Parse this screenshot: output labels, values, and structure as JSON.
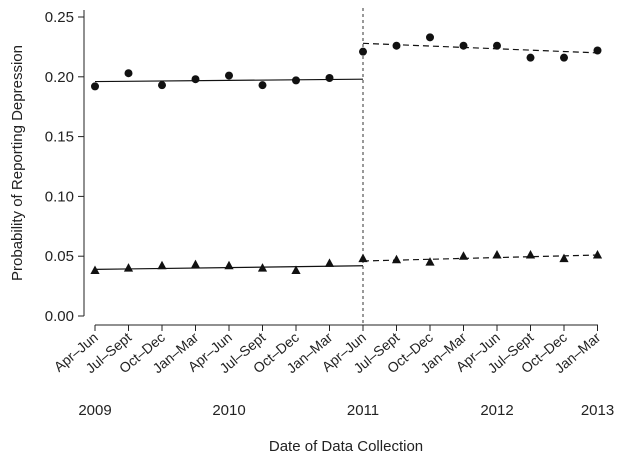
{
  "chart_data": {
    "type": "scatter",
    "title": "",
    "xlabel": "Date of Data Collection",
    "ylabel": "Probability of Reporting Depression",
    "ylim": [
      0,
      0.25
    ],
    "yticks": [
      "0.00",
      "0.05",
      "0.10",
      "0.15",
      "0.20",
      "0.25"
    ],
    "categories": [
      "Apr–Jun",
      "Jul–Sept",
      "Oct–Dec",
      "Jan–Mar",
      "Apr–Jun",
      "Jul–Sept",
      "Oct–Dec",
      "Jan–Mar",
      "Apr–Jun",
      "Jul–Sept",
      "Oct–Dec",
      "Jan–Mar",
      "Apr–Jun",
      "Jul–Sept",
      "Oct–Dec",
      "Jan–Mar"
    ],
    "years": [
      {
        "label": "2009",
        "at": 0
      },
      {
        "label": "2010",
        "at": 4
      },
      {
        "label": "2011",
        "at": 8
      },
      {
        "label": "2012",
        "at": 12
      },
      {
        "label": "2013",
        "at": 15
      }
    ],
    "divider_at": 8,
    "series": [
      {
        "marker": "circle",
        "values": [
          0.192,
          0.203,
          0.193,
          0.198,
          0.201,
          0.193,
          0.197,
          0.199,
          0.221,
          0.226,
          0.233,
          0.226,
          0.226,
          0.216,
          0.216,
          0.222
        ],
        "fit_before": [
          0.196,
          0.198
        ],
        "fit_after": [
          0.228,
          0.22
        ]
      },
      {
        "marker": "triangle",
        "values": [
          0.038,
          0.04,
          0.042,
          0.043,
          0.042,
          0.04,
          0.038,
          0.044,
          0.048,
          0.047,
          0.045,
          0.05,
          0.051,
          0.051,
          0.048,
          0.051
        ],
        "fit_before": [
          0.039,
          0.042
        ],
        "fit_after": [
          0.046,
          0.051
        ]
      }
    ],
    "grid": false,
    "legend": "none"
  }
}
